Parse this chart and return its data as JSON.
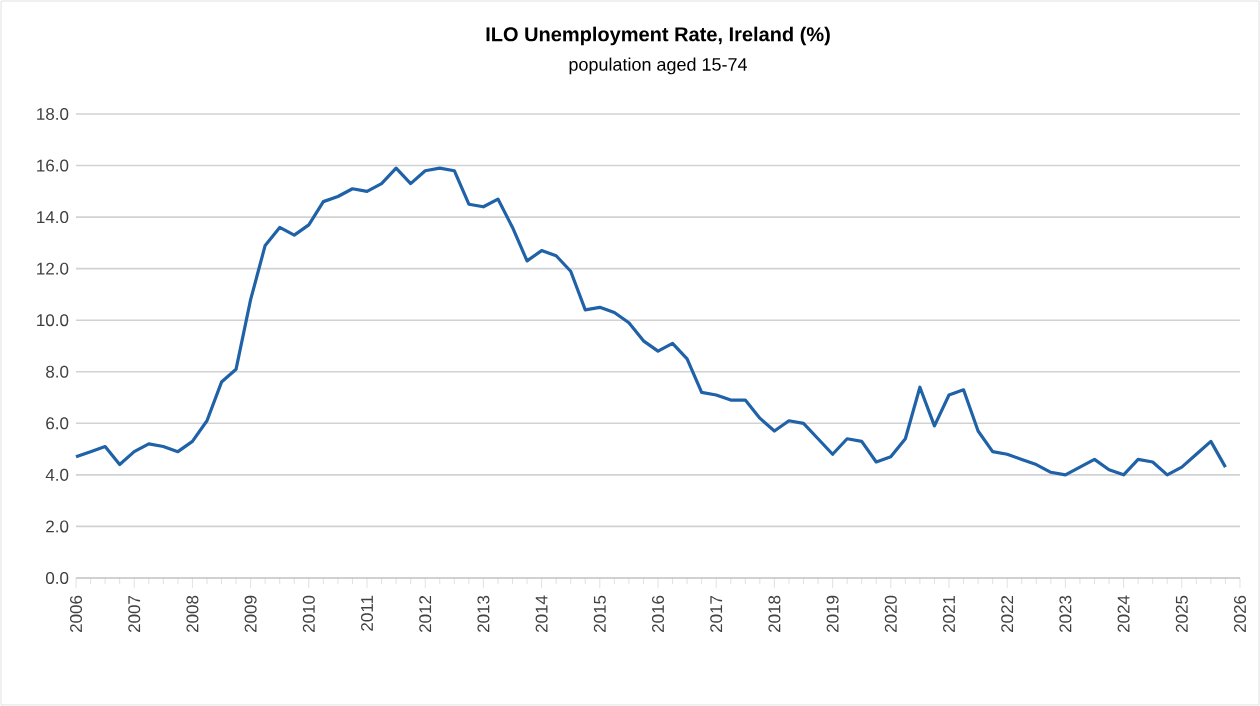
{
  "chart_data": {
    "type": "line",
    "title": "ILO Unemployment Rate, Ireland (%)",
    "subtitle": "population aged 15-74",
    "x": [
      2006,
      2006.25,
      2006.5,
      2006.75,
      2007,
      2007.25,
      2007.5,
      2007.75,
      2008,
      2008.25,
      2008.5,
      2008.75,
      2009,
      2009.25,
      2009.5,
      2009.75,
      2010,
      2010.25,
      2010.5,
      2010.75,
      2011,
      2011.25,
      2011.5,
      2011.75,
      2012,
      2012.25,
      2012.5,
      2012.75,
      2013,
      2013.25,
      2013.5,
      2013.75,
      2014,
      2014.25,
      2014.5,
      2014.75,
      2015,
      2015.25,
      2015.5,
      2015.75,
      2016,
      2016.25,
      2016.5,
      2016.75,
      2017,
      2017.25,
      2017.5,
      2017.75,
      2018,
      2018.25,
      2018.5,
      2018.75,
      2019,
      2019.25,
      2019.5,
      2019.75,
      2020,
      2020.25,
      2020.5,
      2020.75,
      2021,
      2021.25,
      2021.5,
      2021.75,
      2022,
      2022.25,
      2022.5,
      2022.75,
      2023,
      2023.25,
      2023.5,
      2023.75,
      2024,
      2024.25,
      2024.5,
      2024.75,
      2025,
      2025.25,
      2025.5,
      2025.75
    ],
    "series": [
      {
        "color": "#1f62a8",
        "values": [
          4.7,
          4.9,
          5.1,
          4.4,
          4.9,
          5.2,
          5.1,
          4.9,
          5.3,
          6.1,
          7.6,
          8.1,
          10.8,
          12.9,
          13.6,
          13.3,
          13.7,
          14.6,
          14.8,
          15.1,
          15.0,
          15.3,
          15.9,
          15.3,
          15.8,
          15.9,
          15.8,
          14.5,
          14.4,
          14.7,
          13.6,
          12.3,
          12.7,
          12.5,
          11.9,
          10.4,
          10.5,
          10.3,
          9.9,
          9.2,
          8.8,
          9.1,
          8.5,
          7.2,
          7.1,
          6.9,
          6.9,
          6.2,
          5.7,
          6.1,
          6.0,
          5.4,
          4.8,
          5.4,
          5.3,
          4.5,
          4.7,
          5.4,
          7.4,
          5.9,
          7.1,
          7.3,
          5.7,
          4.9,
          4.8,
          4.6,
          4.4,
          4.1,
          4.0,
          4.3,
          4.6,
          4.2,
          4.0,
          4.6,
          4.5,
          4.0,
          4.3,
          4.8,
          5.3,
          4.3
        ]
      }
    ],
    "xlim": [
      2006,
      2026
    ],
    "xticks": [
      2006,
      2007,
      2008,
      2009,
      2010,
      2011,
      2012,
      2013,
      2014,
      2015,
      2016,
      2017,
      2018,
      2019,
      2020,
      2021,
      2022,
      2023,
      2024,
      2025,
      2026
    ],
    "ylim": [
      0,
      18
    ],
    "yticks": [
      {
        "value": 0,
        "label": "0.0"
      },
      {
        "value": 2,
        "label": "2.0"
      },
      {
        "value": 4,
        "label": "4.0"
      },
      {
        "value": 6,
        "label": "6.0"
      },
      {
        "value": 8,
        "label": "8.0"
      },
      {
        "value": 10,
        "label": "10.0"
      },
      {
        "value": 12,
        "label": "12.0"
      },
      {
        "value": 14,
        "label": "14.0"
      },
      {
        "value": 16,
        "label": "16.0"
      },
      {
        "value": 18,
        "label": "18.0"
      }
    ],
    "grid": "y",
    "marker": "none",
    "line_style": "solid"
  }
}
